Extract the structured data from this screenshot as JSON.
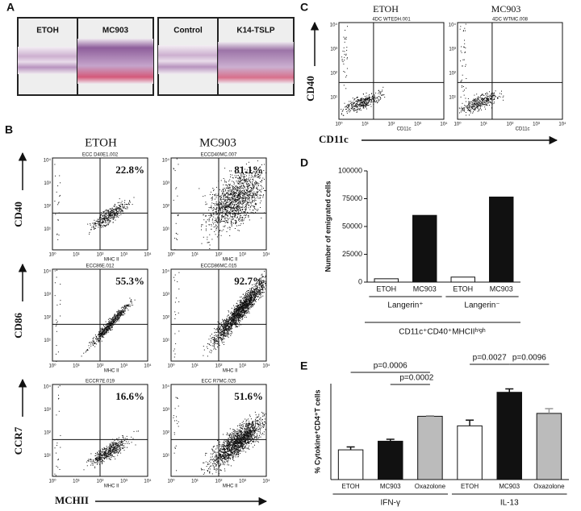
{
  "panel_labels": {
    "a": "A",
    "b": "B",
    "c": "C",
    "d": "D",
    "e": "E"
  },
  "panel_a": {
    "labels": [
      "ETOH",
      "MC903",
      "Control",
      "K14-TSLP"
    ]
  },
  "panel_b": {
    "columns": [
      "ETOH",
      "MC903"
    ],
    "x_label": "MCHII",
    "plot_x_label": "MHC II",
    "log_ticks": [
      "10⁰",
      "10¹",
      "10²",
      "10³",
      "10⁴"
    ],
    "rows": [
      {
        "label": "CD40",
        "plots": [
          {
            "file": "ECC D40E1.002",
            "percent": "22.8%"
          },
          {
            "file": "ECCD40MC.007",
            "percent": "81.1%"
          }
        ]
      },
      {
        "label": "CD86",
        "plots": [
          {
            "file": "ECC86E.012",
            "percent": "55.3%"
          },
          {
            "file": "ECCD86MC.015",
            "percent": "92.7%"
          }
        ]
      },
      {
        "label": "CCR7",
        "plots": [
          {
            "file": "ECCR7E.019",
            "percent": "16.6%"
          },
          {
            "file": "ECC R7MC.025",
            "percent": "51.6%"
          }
        ]
      }
    ]
  },
  "panel_c": {
    "columns": [
      "ETOH",
      "MC903"
    ],
    "files": [
      "4DC WTEDH.001",
      "4DC WTMC.008"
    ],
    "y_label": "CD40",
    "x_label": "CD11c",
    "plot_x_label": "CD11c"
  },
  "chart_data": [
    {
      "type": "bar",
      "y_label": "Number of emigrated cells",
      "categories": [
        "ETOH",
        "MC903",
        "ETOH",
        "MC903"
      ],
      "groups": [
        "Langerin⁺",
        "Langerin⁻"
      ],
      "group_label": "CD11c⁺CD40⁺MHCIIʰⁱᵍʰ",
      "values": [
        3000,
        60000,
        4500,
        76500
      ],
      "colors": [
        "#ffffff",
        "#111111",
        "#ffffff",
        "#111111"
      ],
      "ylim": [
        0,
        100000
      ],
      "yticks": [
        0,
        25000,
        50000,
        75000,
        100000
      ]
    },
    {
      "type": "bar",
      "y_label": "% Cytokine⁺CD4⁺T cells",
      "categories": [
        "ETOH",
        "MC903",
        "Oxazolone",
        "ETOH",
        "MC903",
        "Oxazolone"
      ],
      "groups": [
        "IFN-γ",
        "IL-13"
      ],
      "values": [
        3.1,
        4.0,
        6.6,
        5.6,
        9.1,
        6.9
      ],
      "errors": [
        0.3,
        0.2,
        0.05,
        0.6,
        0.35,
        0.5
      ],
      "colors": [
        "#ffffff",
        "#111111",
        "#bbbbbb",
        "#ffffff",
        "#111111",
        "#bbbbbb"
      ],
      "ylim": [
        0,
        10
      ],
      "annotations": [
        "p=0.0006",
        "p=0.0002",
        "p=0.0027",
        "p=0.0096"
      ]
    }
  ]
}
